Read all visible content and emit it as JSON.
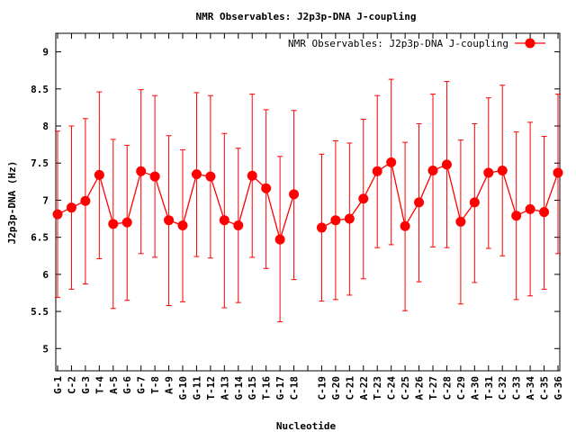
{
  "chart_data": {
    "type": "line",
    "title": "NMR Observables: J2p3p-DNA J-coupling",
    "xlabel": "Nucleotide",
    "ylabel": "J2p3p-DNA (Hz)",
    "ylim": [
      4.7,
      9.25
    ],
    "yticks": [
      5,
      5.5,
      6,
      6.5,
      7,
      7.5,
      8,
      8.5,
      9
    ],
    "grid": false,
    "legend_position": "top-right",
    "color": "#ff0000",
    "categories": [
      "G-1",
      "C-2",
      "G-3",
      "T-4",
      "A-5",
      "G-6",
      "G-7",
      "T-8",
      "A-9",
      "G-10",
      "G-11",
      "T-12",
      "A-13",
      "G-14",
      "G-15",
      "T-16",
      "G-17",
      "C-18",
      "",
      "C-19",
      "G-20",
      "C-21",
      "A-22",
      "T-23",
      "C-24",
      "C-25",
      "A-26",
      "T-27",
      "C-28",
      "C-29",
      "A-30",
      "T-31",
      "C-32",
      "C-33",
      "A-34",
      "C-35",
      "G-36"
    ],
    "series": [
      {
        "name": "NMR Observables: J2p3p-DNA J-coupling",
        "values": [
          6.81,
          6.9,
          6.99,
          7.34,
          6.68,
          6.7,
          7.39,
          7.32,
          6.73,
          6.66,
          7.35,
          7.32,
          6.73,
          6.66,
          7.33,
          7.16,
          6.47,
          7.08,
          null,
          6.63,
          6.73,
          6.75,
          7.02,
          7.39,
          7.51,
          6.65,
          6.97,
          7.4,
          7.48,
          6.71,
          6.97,
          7.37,
          7.4,
          6.79,
          6.88,
          6.84,
          7.37
        ],
        "upper": [
          7.93,
          8.0,
          8.1,
          8.46,
          7.82,
          7.74,
          8.49,
          8.41,
          7.87,
          7.68,
          8.45,
          8.41,
          7.9,
          7.7,
          8.43,
          8.22,
          7.59,
          8.21,
          null,
          7.62,
          7.8,
          7.77,
          8.09,
          8.41,
          8.63,
          7.78,
          8.03,
          8.43,
          8.6,
          7.81,
          8.03,
          8.38,
          8.55,
          7.92,
          8.05,
          7.86,
          8.43
        ],
        "lower": [
          5.69,
          5.8,
          5.87,
          6.21,
          5.54,
          5.65,
          6.28,
          6.23,
          5.58,
          5.63,
          6.24,
          6.22,
          5.55,
          5.62,
          6.23,
          6.08,
          5.36,
          5.93,
          null,
          5.64,
          5.66,
          5.72,
          5.94,
          6.36,
          6.4,
          5.51,
          5.9,
          6.37,
          6.36,
          5.6,
          5.89,
          6.35,
          6.25,
          5.66,
          5.71,
          5.8,
          6.28
        ]
      }
    ]
  }
}
